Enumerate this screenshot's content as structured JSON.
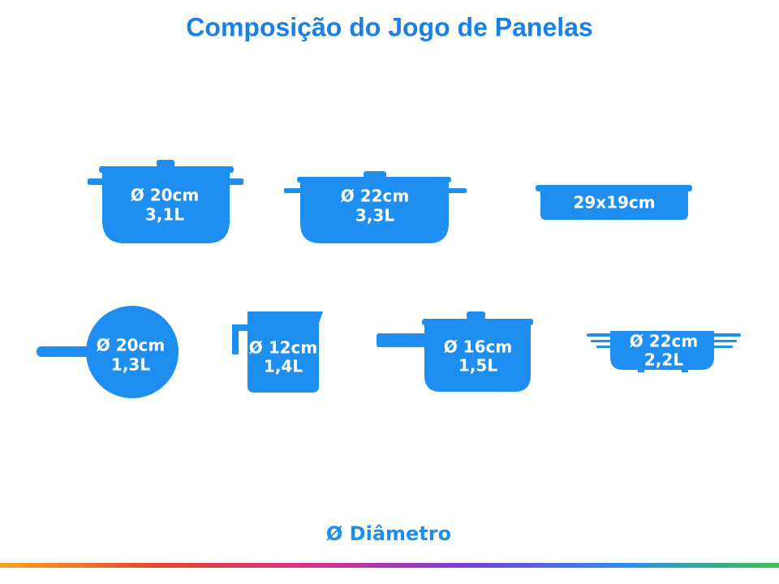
{
  "title": "Composição do Jogo de Panelas",
  "items": [
    {
      "lines": [
        "Ø 20cm",
        "3,1L"
      ]
    },
    {
      "lines": [
        "Ø 22cm",
        "3,3L"
      ]
    },
    {
      "lines": [
        "29x19cm"
      ]
    },
    {
      "lines": [
        "Ø 20cm",
        "1,3L"
      ]
    },
    {
      "lines": [
        "Ø 12cm",
        "1,4L"
      ]
    },
    {
      "lines": [
        "Ø 16cm",
        "1,5L"
      ]
    },
    {
      "lines": [
        "Ø 22cm",
        "2,2L"
      ]
    }
  ],
  "legend": "Ø Diâmetro"
}
